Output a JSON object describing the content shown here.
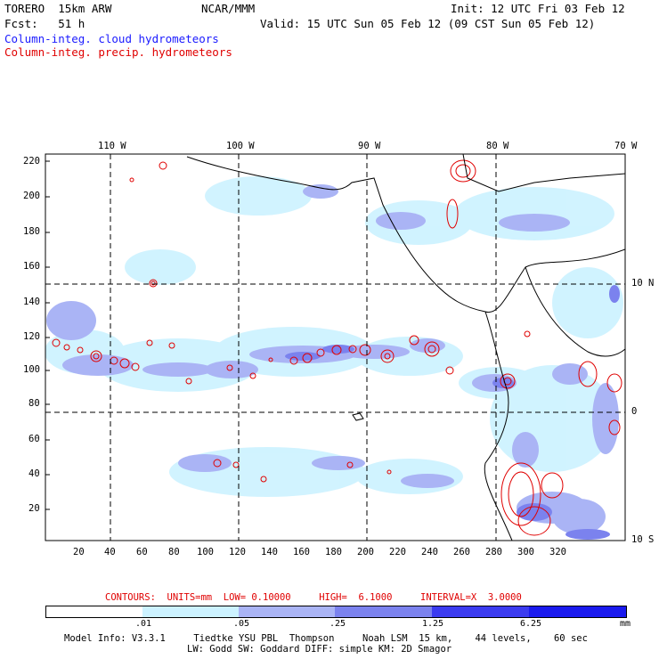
{
  "header": {
    "model": "TORERO  15km ARW",
    "center": "NCAR/MMM",
    "init": "Init: 12 UTC Fri 03 Feb 12",
    "fcst": "Fcst:   51 h",
    "valid": "Valid: 15 UTC Sun 05 Feb 12 (09 CST Sun 05 Feb 12)",
    "field_fill": "Column-integ. cloud hydrometeors",
    "field_contour": "Column-integ. precip. hydrometeors"
  },
  "map": {
    "lon_labels": [
      "110 W",
      "100 W",
      "90 W",
      "80 W",
      "70 W"
    ],
    "lat_labels": [
      "10 N",
      "0",
      "10 S"
    ],
    "y_ticks": [
      "220",
      "200",
      "180",
      "160",
      "140",
      "120",
      "100",
      "80",
      "60",
      "40",
      "20"
    ],
    "x_ticks": [
      "20",
      "40",
      "60",
      "80",
      "100",
      "120",
      "140",
      "160",
      "180",
      "200",
      "220",
      "240",
      "260",
      "280",
      "300",
      "320"
    ]
  },
  "contours": {
    "label": "CONTOURS:  UNITS=mm  LOW= 0.10000     HIGH=  6.1000     INTERVAL=X  3.0000"
  },
  "colorbar": {
    "levels": [
      ".01",
      ".05",
      ".25",
      "1.25",
      "6.25"
    ],
    "units": "mm",
    "colors": [
      "#ffffff",
      "#ccf2ff",
      "#aab4f5",
      "#7b82ee",
      "#3b3bf0",
      "#1a1aee"
    ]
  },
  "model_info": {
    "line1": "Model Info: V3.3.1     Tiedtke YSU PBL  Thompson     Noah LSM  15 km,    44 levels,    60 sec",
    "line2": "LW: Godd SW: Goddard DIFF: simple KM: 2D Smagor"
  },
  "colors": {
    "blue_text": "#1a1aff",
    "red_text": "#e00000"
  }
}
